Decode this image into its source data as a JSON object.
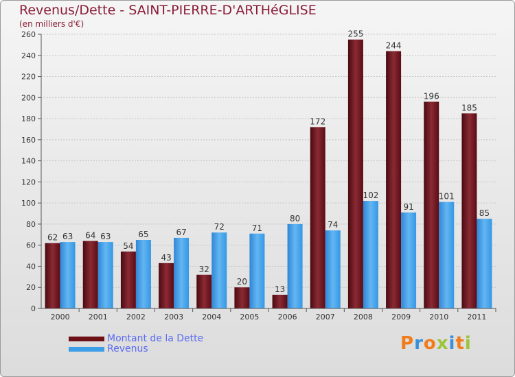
{
  "title": "Revenus/Dette - SAINT-PIERRE-D'ARTHéGLISE",
  "subtitle": "(en milliers d'€)",
  "logo": "Proxiti",
  "chart_data": {
    "type": "bar",
    "categories": [
      "2000",
      "2001",
      "2002",
      "2003",
      "2004",
      "2005",
      "2006",
      "2007",
      "2008",
      "2009",
      "2010",
      "2011"
    ],
    "series": [
      {
        "name": "Montant de la Dette",
        "color": "#6e1018",
        "values": [
          62,
          64,
          54,
          43,
          32,
          20,
          13,
          172,
          255,
          244,
          196,
          185
        ]
      },
      {
        "name": "Revenus",
        "color": "#3d9ee8",
        "values": [
          63,
          63,
          65,
          67,
          72,
          71,
          80,
          74,
          102,
          91,
          101,
          85
        ]
      }
    ],
    "ylim": [
      0,
      260
    ],
    "yticks": [
      0,
      20,
      40,
      60,
      80,
      100,
      120,
      140,
      160,
      180,
      200,
      220,
      240,
      260
    ],
    "grid": true,
    "legend": "bottom-left"
  }
}
